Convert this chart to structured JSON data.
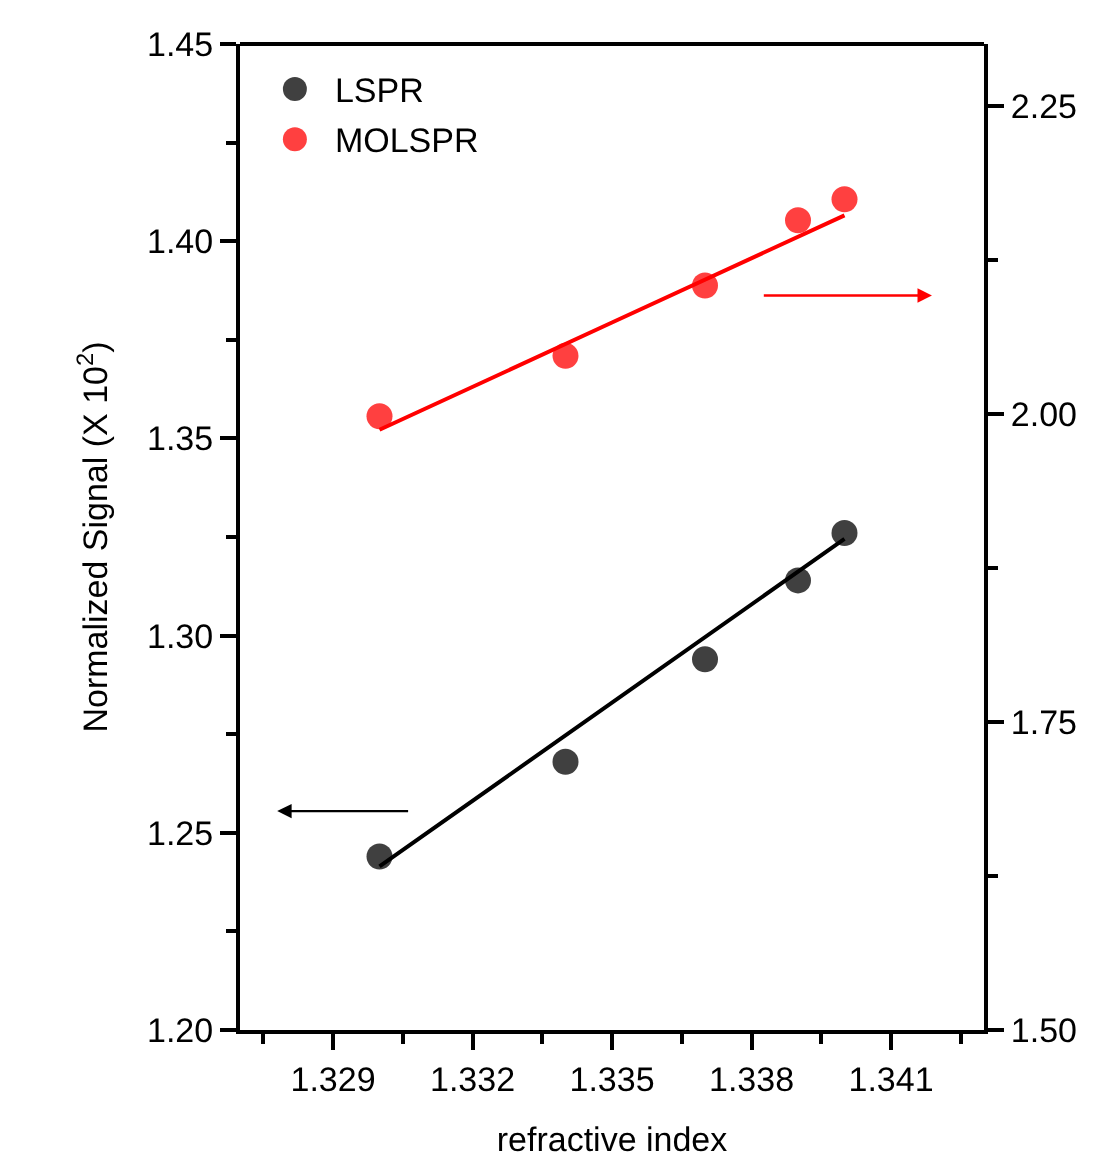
{
  "chart_data": {
    "type": "scatter",
    "xlabel": "refractive index",
    "ylabel": "Normalized Signal (X 10$^{2}$)",
    "x": [
      1.33,
      1.334,
      1.337,
      1.339,
      1.34
    ],
    "series": [
      {
        "name": "LSPR",
        "color": "#000000",
        "values": [
          1.244,
          1.268,
          1.294,
          1.314,
          1.326
        ]
      },
      {
        "name": "MOLSPR",
        "color": "#ff0000",
        "axis": "y2",
        "values": [
          1.998,
          2.047,
          2.104,
          2.157,
          2.174
        ]
      },
      {
        "type": "line",
        "marker": "none",
        "color": "#000000",
        "x": [
          1.33,
          1.335,
          1.34
        ],
        "values": [
          1.2415,
          1.283,
          1.3245
        ]
      },
      {
        "type": "line",
        "marker": "none",
        "color": "#ff0000",
        "axis": "y2",
        "x": [
          1.33,
          1.335,
          1.34
        ],
        "values": [
          1.987,
          2.074,
          2.161
        ]
      }
    ],
    "xlim": [
      1.327,
      1.343
    ],
    "xticks": [
      1.329,
      1.332,
      1.335,
      1.338,
      1.341
    ],
    "ylim": [
      1.2,
      1.45
    ],
    "yticks": [
      {
        "value": 1.2,
        "label": "1.20"
      },
      1.25,
      {
        "value": 1.3,
        "label": "1.30"
      },
      1.35,
      {
        "value": 1.4,
        "label": "1.40"
      },
      1.45
    ],
    "y2lim": [
      1.5,
      2.3
    ],
    "y2ticks": [
      {
        "value": 1.5,
        "label": "1.50"
      },
      1.75,
      {
        "value": 2.0,
        "label": "2.00"
      },
      2.25
    ],
    "legend": "top left",
    "marker": "circle",
    "line_style": "solid"
  }
}
